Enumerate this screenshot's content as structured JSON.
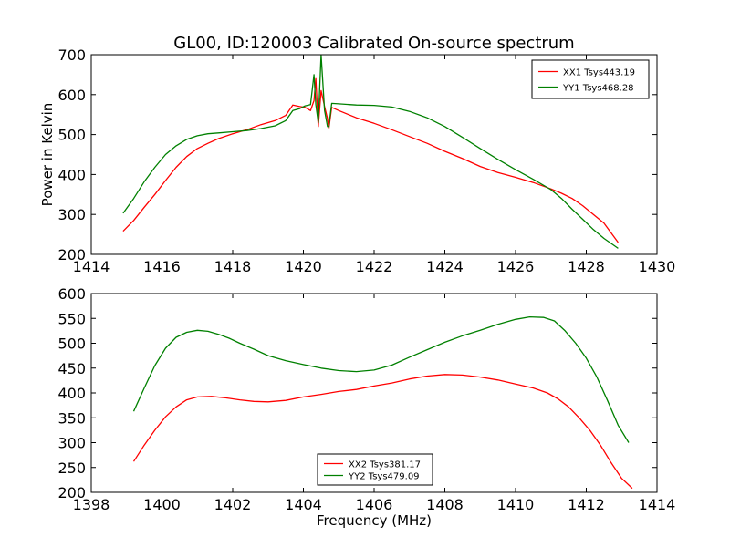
{
  "figure": {
    "title": "GL00, ID:120003 Calibrated On-source spectrum"
  },
  "colors": {
    "xx": "#ff0000",
    "yy": "#008000"
  },
  "chart_data": [
    {
      "type": "line",
      "ylabel": "Power in Kelvin",
      "xlabel": "",
      "xlim": [
        1414,
        1430
      ],
      "ylim": [
        200,
        700
      ],
      "xticks": [
        "1414",
        "1416",
        "1418",
        "1420",
        "1422",
        "1424",
        "1426",
        "1428",
        "1430"
      ],
      "yticks": [
        "200",
        "300",
        "400",
        "500",
        "600",
        "700"
      ],
      "legend_position": "top-right",
      "series": [
        {
          "name": "XX1 Tsys443.19",
          "color": "#ff0000",
          "x": [
            1414.9,
            1415.2,
            1415.5,
            1415.8,
            1416.1,
            1416.4,
            1416.7,
            1417.0,
            1417.3,
            1417.6,
            1418.0,
            1418.4,
            1418.8,
            1419.2,
            1419.5,
            1419.7,
            1419.9,
            1420.05,
            1420.2,
            1420.3,
            1420.35,
            1420.42,
            1420.5,
            1420.6,
            1420.68,
            1420.72,
            1420.8,
            1421.0,
            1421.5,
            1422.0,
            1422.5,
            1423.0,
            1423.5,
            1424.0,
            1424.5,
            1425.0,
            1425.5,
            1426.0,
            1426.5,
            1427.0,
            1427.3,
            1427.6,
            1427.9,
            1428.2,
            1428.5,
            1428.9
          ],
          "y": [
            258,
            285,
            318,
            350,
            385,
            418,
            445,
            465,
            478,
            490,
            502,
            512,
            525,
            535,
            548,
            574,
            570,
            568,
            560,
            585,
            640,
            520,
            610,
            570,
            540,
            515,
            568,
            560,
            542,
            528,
            512,
            495,
            478,
            458,
            440,
            420,
            405,
            393,
            380,
            364,
            353,
            340,
            322,
            300,
            278,
            230
          ]
        },
        {
          "name": "YY1 Tsys468.28",
          "color": "#008000",
          "x": [
            1414.9,
            1415.2,
            1415.5,
            1415.8,
            1416.1,
            1416.4,
            1416.7,
            1417.0,
            1417.3,
            1417.6,
            1418.0,
            1418.4,
            1418.8,
            1419.2,
            1419.5,
            1419.7,
            1419.9,
            1420.05,
            1420.2,
            1420.3,
            1420.35,
            1420.42,
            1420.5,
            1420.6,
            1420.68,
            1420.72,
            1420.8,
            1421.0,
            1421.5,
            1422.0,
            1422.5,
            1423.0,
            1423.5,
            1424.0,
            1424.5,
            1425.0,
            1425.5,
            1426.0,
            1426.5,
            1427.0,
            1427.3,
            1427.6,
            1427.9,
            1428.2,
            1428.5,
            1428.9
          ],
          "y": [
            303,
            340,
            382,
            418,
            450,
            472,
            488,
            497,
            502,
            504,
            507,
            510,
            515,
            522,
            535,
            560,
            565,
            572,
            575,
            650,
            575,
            530,
            700,
            560,
            520,
            520,
            578,
            577,
            574,
            573,
            569,
            558,
            542,
            520,
            493,
            465,
            438,
            412,
            388,
            362,
            340,
            313,
            288,
            262,
            240,
            215
          ]
        }
      ]
    },
    {
      "type": "line",
      "ylabel": "",
      "xlabel": "Frequency (MHz)",
      "xlim": [
        1398,
        1414
      ],
      "ylim": [
        200,
        600
      ],
      "xticks": [
        "1398",
        "1400",
        "1402",
        "1404",
        "1406",
        "1408",
        "1410",
        "1412",
        "1414"
      ],
      "yticks": [
        "200",
        "250",
        "300",
        "350",
        "400",
        "450",
        "500",
        "550",
        "600"
      ],
      "legend_position": "bottom-center",
      "series": [
        {
          "name": "XX2 Tsys381.17",
          "color": "#ff0000",
          "x": [
            1399.2,
            1399.5,
            1399.8,
            1400.1,
            1400.4,
            1400.7,
            1401.0,
            1401.4,
            1401.8,
            1402.2,
            1402.6,
            1403.0,
            1403.5,
            1404.0,
            1404.5,
            1405.0,
            1405.5,
            1406.0,
            1406.5,
            1407.0,
            1407.5,
            1408.0,
            1408.5,
            1409.0,
            1409.5,
            1410.0,
            1410.5,
            1410.9,
            1411.2,
            1411.5,
            1411.8,
            1412.1,
            1412.4,
            1412.7,
            1413.0,
            1413.3
          ],
          "y": [
            262,
            295,
            325,
            352,
            372,
            386,
            392,
            393,
            390,
            386,
            383,
            382,
            385,
            392,
            397,
            403,
            407,
            414,
            420,
            428,
            434,
            437,
            436,
            432,
            426,
            418,
            410,
            400,
            388,
            372,
            350,
            325,
            295,
            260,
            228,
            208
          ]
        },
        {
          "name": "YY2 Tsys479.09",
          "color": "#008000",
          "x": [
            1399.2,
            1399.5,
            1399.8,
            1400.1,
            1400.4,
            1400.7,
            1401.0,
            1401.3,
            1401.6,
            1401.9,
            1402.2,
            1402.6,
            1403.0,
            1403.5,
            1404.0,
            1404.5,
            1405.0,
            1405.5,
            1406.0,
            1406.5,
            1407.0,
            1407.5,
            1408.0,
            1408.5,
            1409.0,
            1409.5,
            1410.0,
            1410.4,
            1410.8,
            1411.1,
            1411.4,
            1411.7,
            1412.0,
            1412.3,
            1412.6,
            1412.9,
            1413.2
          ],
          "y": [
            363,
            410,
            455,
            490,
            512,
            522,
            526,
            524,
            518,
            510,
            500,
            488,
            475,
            465,
            457,
            450,
            445,
            443,
            446,
            456,
            472,
            487,
            502,
            515,
            526,
            538,
            548,
            553,
            552,
            545,
            525,
            500,
            470,
            432,
            385,
            335,
            300
          ]
        }
      ]
    }
  ]
}
